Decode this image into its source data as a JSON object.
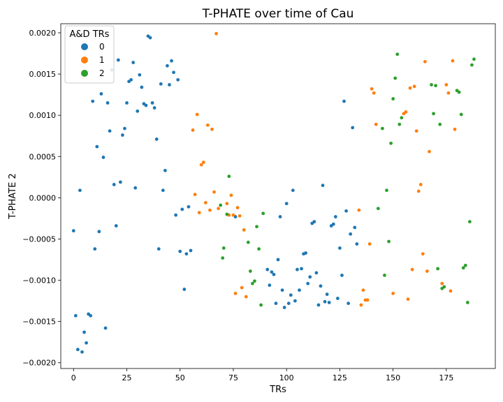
{
  "chart_data": {
    "type": "scatter",
    "title": "T-PHATE over time of Cau",
    "xlabel": "TRs",
    "ylabel": "T-PHATE 2",
    "xlim": [
      -6,
      198
    ],
    "ylim": [
      -0.00207,
      0.00211
    ],
    "xticks": [
      0,
      25,
      50,
      75,
      100,
      125,
      150,
      175
    ],
    "yticks": [
      -0.002,
      -0.0015,
      -0.001,
      -0.0005,
      0.0,
      0.0005,
      0.001,
      0.0015,
      0.002
    ],
    "ytick_labels": [
      "−0.0020",
      "−0.0015",
      "−0.0010",
      "−0.0005",
      "0.0000",
      "0.0005",
      "0.0010",
      "0.0015",
      "0.0020"
    ],
    "grid": false,
    "legend": {
      "title": "A&D TRs",
      "placement": "top-left"
    },
    "series": [
      {
        "name": "0",
        "color": "#1f77b4",
        "points": [
          [
            0,
            -0.0004
          ],
          [
            1,
            -0.00143
          ],
          [
            2,
            -0.00184
          ],
          [
            3,
            9e-05
          ],
          [
            4,
            -0.00187
          ],
          [
            5,
            -0.00163
          ],
          [
            6,
            -0.00176
          ],
          [
            7,
            -0.00141
          ],
          [
            8,
            -0.00143
          ],
          [
            9,
            0.00117
          ],
          [
            10,
            -0.00062
          ],
          [
            11,
            0.00062
          ],
          [
            12,
            -0.00041
          ],
          [
            13,
            0.00126
          ],
          [
            14,
            0.00049
          ],
          [
            15,
            -0.00158
          ],
          [
            16,
            0.00115
          ],
          [
            17,
            0.00081
          ],
          [
            18,
            0.00155
          ],
          [
            19,
            0.00016
          ],
          [
            20,
            -0.00034
          ],
          [
            21,
            0.00167
          ],
          [
            22,
            0.00019
          ],
          [
            23,
            0.00076
          ],
          [
            24,
            0.00084
          ],
          [
            25,
            0.00115
          ],
          [
            26,
            0.00141
          ],
          [
            27,
            0.00143
          ],
          [
            28,
            0.00164
          ],
          [
            29,
            0.00012
          ],
          [
            30,
            0.00105
          ],
          [
            31,
            0.00149
          ],
          [
            32,
            0.00134
          ],
          [
            33,
            0.00114
          ],
          [
            34,
            0.00112
          ],
          [
            35,
            0.00196
          ],
          [
            36,
            0.00194
          ],
          [
            37,
            0.00115
          ],
          [
            38,
            0.00109
          ],
          [
            39,
            0.00071
          ],
          [
            40,
            -0.00062
          ],
          [
            41,
            0.00138
          ],
          [
            42,
            9e-05
          ],
          [
            43,
            0.00033
          ],
          [
            44,
            0.0016
          ],
          [
            45,
            0.00137
          ],
          [
            46,
            0.00166
          ],
          [
            47,
            0.00152
          ],
          [
            48,
            -0.00021
          ],
          [
            49,
            0.00143
          ],
          [
            50,
            -0.00065
          ],
          [
            51,
            -0.00014
          ],
          [
            52,
            -0.00111
          ],
          [
            53,
            -0.00068
          ],
          [
            54,
            -0.00011
          ],
          [
            55,
            -0.00064
          ],
          [
            76,
            -0.00023
          ],
          [
            91,
            -0.00087
          ],
          [
            92,
            -0.00106
          ],
          [
            93,
            -0.0009
          ],
          [
            94,
            -0.00093
          ],
          [
            95,
            -0.00128
          ],
          [
            96,
            -0.00075
          ],
          [
            97,
            -0.00023
          ],
          [
            98,
            -0.00112
          ],
          [
            99,
            -0.00133
          ],
          [
            100,
            -7e-05
          ],
          [
            101,
            -0.00128
          ],
          [
            102,
            -0.00118
          ],
          [
            103,
            9e-05
          ],
          [
            104,
            -0.00125
          ],
          [
            105,
            -0.00087
          ],
          [
            106,
            -0.00112
          ],
          [
            107,
            -0.00086
          ],
          [
            108,
            -0.00068
          ],
          [
            109,
            -0.00067
          ],
          [
            110,
            -0.00104
          ],
          [
            111,
            -0.00096
          ],
          [
            112,
            -0.00031
          ],
          [
            113,
            -0.00029
          ],
          [
            114,
            -0.00091
          ],
          [
            115,
            -0.0013
          ],
          [
            116,
            -0.00107
          ],
          [
            117,
            0.00015
          ],
          [
            118,
            -0.00126
          ],
          [
            119,
            -0.00117
          ],
          [
            120,
            -0.00127
          ],
          [
            121,
            -0.00034
          ],
          [
            122,
            -0.00032
          ],
          [
            123,
            -0.00023
          ],
          [
            124,
            -0.00122
          ],
          [
            125,
            -0.00061
          ],
          [
            126,
            -0.00094
          ],
          [
            127,
            0.00117
          ],
          [
            128,
            -0.00016
          ],
          [
            129,
            -0.00128
          ],
          [
            130,
            -0.00044
          ],
          [
            131,
            0.00085
          ],
          [
            132,
            -0.00036
          ],
          [
            133,
            -0.00056
          ]
        ]
      },
      {
        "name": "1",
        "color": "#ff7f0e",
        "points": [
          [
            56,
            0.00082
          ],
          [
            57,
            4e-05
          ],
          [
            58,
            0.00101
          ],
          [
            59,
            -0.00018
          ],
          [
            60,
            0.0004
          ],
          [
            61,
            0.00043
          ],
          [
            62,
            -6e-05
          ],
          [
            63,
            0.00088
          ],
          [
            64,
            -0.00015
          ],
          [
            65,
            0.00083
          ],
          [
            66,
            7e-05
          ],
          [
            67,
            0.00199
          ],
          [
            68,
            -0.00013
          ],
          [
            72,
            -7e-05
          ],
          [
            73,
            -0.00021
          ],
          [
            74,
            3e-05
          ],
          [
            75,
            -0.00021
          ],
          [
            76,
            -0.00116
          ],
          [
            77,
            -0.00012
          ],
          [
            78,
            -0.00022
          ],
          [
            79,
            -0.00109
          ],
          [
            80,
            -0.00039
          ],
          [
            81,
            -0.0012
          ],
          [
            134,
            -0.00015
          ],
          [
            135,
            -0.0013
          ],
          [
            136,
            -0.00112
          ],
          [
            137,
            -0.00124
          ],
          [
            138,
            -0.00124
          ],
          [
            139,
            -0.00056
          ],
          [
            140,
            0.00132
          ],
          [
            141,
            0.00127
          ],
          [
            142,
            0.00089
          ],
          [
            150,
            -0.00116
          ],
          [
            155,
            0.00102
          ],
          [
            156,
            0.00104
          ],
          [
            157,
            -0.00123
          ],
          [
            158,
            0.00133
          ],
          [
            159,
            -0.00087
          ],
          [
            160,
            0.00135
          ],
          [
            161,
            0.00081
          ],
          [
            162,
            8e-05
          ],
          [
            163,
            0.00016
          ],
          [
            164,
            -0.00068
          ],
          [
            165,
            0.00165
          ],
          [
            166,
            -0.00089
          ],
          [
            167,
            0.00056
          ],
          [
            173,
            -0.00104
          ],
          [
            175,
            0.00137
          ],
          [
            176,
            0.00127
          ],
          [
            177,
            -0.00113
          ],
          [
            178,
            0.00166
          ],
          [
            179,
            0.00083
          ],
          [
            180,
            0.0013
          ]
        ]
      },
      {
        "name": "2",
        "color": "#2ca02c",
        "points": [
          [
            69,
            -9e-05
          ],
          [
            70,
            -0.00073
          ],
          [
            70.5,
            -0.00061
          ],
          [
            72,
            -0.0002
          ],
          [
            73,
            0.00026
          ],
          [
            82,
            -0.00054
          ],
          [
            83,
            -0.00089
          ],
          [
            84,
            -0.00104
          ],
          [
            85,
            -0.00101
          ],
          [
            86,
            -0.00035
          ],
          [
            87,
            -0.00062
          ],
          [
            88,
            -0.0013
          ],
          [
            89,
            -0.00019
          ],
          [
            143,
            -0.00013
          ],
          [
            145,
            0.00084
          ],
          [
            146,
            -0.00094
          ],
          [
            147,
            9e-05
          ],
          [
            148,
            -0.00053
          ],
          [
            149,
            0.00066
          ],
          [
            150,
            0.0012
          ],
          [
            151,
            0.00145
          ],
          [
            152,
            0.00174
          ],
          [
            153,
            0.00089
          ],
          [
            154,
            0.00097
          ],
          [
            168,
            0.00137
          ],
          [
            169,
            0.00102
          ],
          [
            170,
            0.00136
          ],
          [
            171,
            -0.00086
          ],
          [
            172,
            0.00089
          ],
          [
            173,
            -0.0011
          ],
          [
            174,
            -0.00108
          ],
          [
            180,
            0.0013
          ],
          [
            181,
            0.00128
          ],
          [
            182,
            0.00101
          ],
          [
            183,
            -0.00085
          ],
          [
            184,
            -0.00082
          ],
          [
            185,
            -0.00127
          ],
          [
            186,
            -0.00029
          ],
          [
            187,
            0.00161
          ],
          [
            188,
            0.00168
          ]
        ]
      }
    ]
  }
}
